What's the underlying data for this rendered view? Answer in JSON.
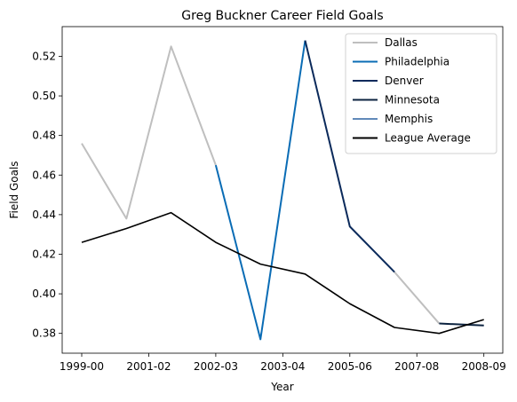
{
  "chart_data": {
    "type": "line",
    "title": "Greg Buckner Career Field Goals",
    "xlabel": "Year",
    "ylabel": "Field Goals",
    "ylim": [
      0.37,
      0.535
    ],
    "x_tick_labels": [
      "1999-00",
      "2001-02",
      "2002-03",
      "2003-04",
      "2005-06",
      "2007-08",
      "2008-09"
    ],
    "y_tick_values": [
      0.38,
      0.4,
      0.42,
      0.44,
      0.46,
      0.48,
      0.5,
      0.52
    ],
    "y_tick_labels": [
      "0.38",
      "0.40",
      "0.42",
      "0.44",
      "0.46",
      "0.48",
      "0.50",
      "0.52"
    ],
    "grid": false,
    "legend_placement": "top-right",
    "series": [
      {
        "name": "Dallas",
        "color": "#bfbfbf",
        "segments": [
          [
            [
              0,
              0.476
            ],
            [
              1,
              0.438
            ],
            [
              2,
              0.525
            ],
            [
              3,
              0.465
            ]
          ],
          [
            [
              7,
              0.411
            ],
            [
              8,
              0.385
            ]
          ]
        ]
      },
      {
        "name": "Philadelphia",
        "color": "#0a6cb5",
        "segments": [
          [
            [
              3,
              0.465
            ],
            [
              4,
              0.377
            ],
            [
              5,
              0.528
            ]
          ]
        ]
      },
      {
        "name": "Denver",
        "color": "#0b2a5b",
        "segments": [
          [
            [
              5,
              0.528
            ],
            [
              6,
              0.434
            ],
            [
              7,
              0.411
            ]
          ]
        ]
      },
      {
        "name": "Minnesota",
        "color": "#0c2340",
        "segments": [
          [
            [
              8,
              0.385
            ],
            [
              9,
              0.384
            ]
          ]
        ]
      },
      {
        "name": "Memphis",
        "color": "#6189b9",
        "segments": []
      },
      {
        "name": "League Average",
        "color": "#000000",
        "segments": [
          [
            [
              0,
              0.426
            ],
            [
              1,
              0.433
            ],
            [
              2,
              0.441
            ],
            [
              3,
              0.426
            ],
            [
              4,
              0.415
            ],
            [
              5,
              0.41
            ],
            [
              6,
              0.395
            ],
            [
              7,
              0.383
            ],
            [
              8,
              0.38
            ],
            [
              9,
              0.387
            ]
          ]
        ]
      }
    ]
  }
}
